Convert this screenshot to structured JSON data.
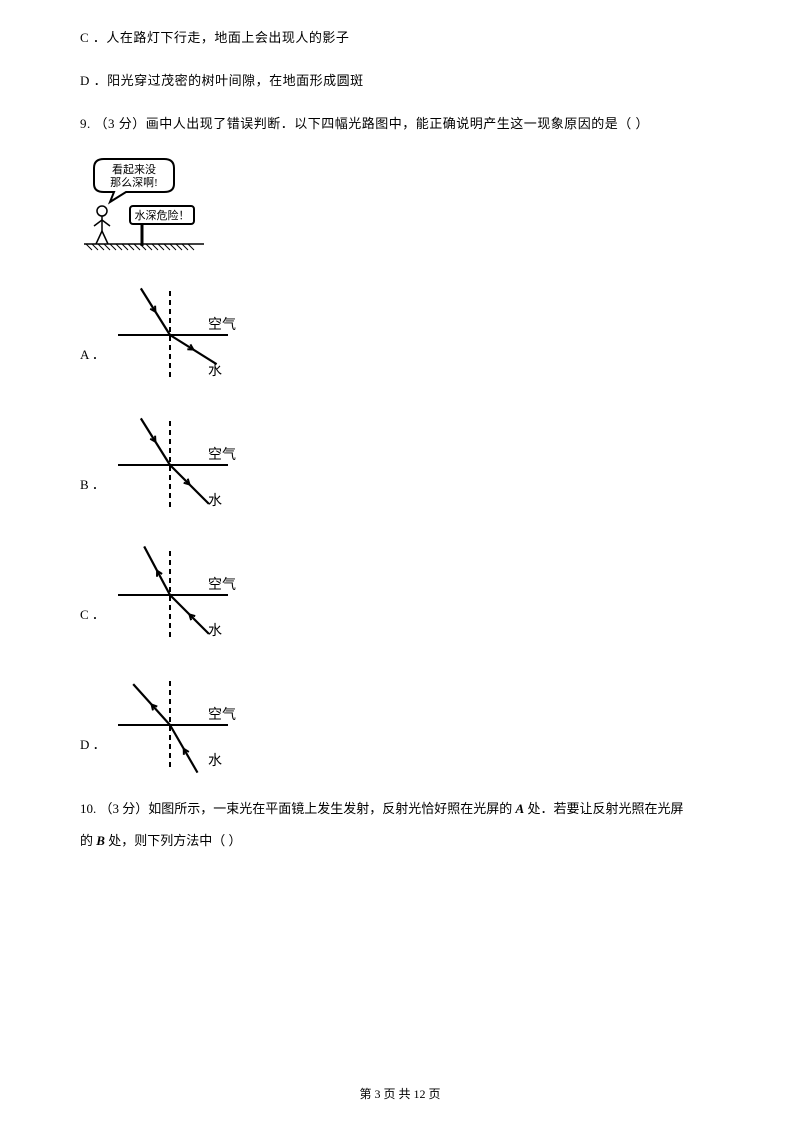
{
  "optC": "C ．人在路灯下行走，地面上会出现人的影子",
  "optD": "D ．阳光穿过茂密的树叶间隙，在地面形成圆斑",
  "q9": {
    "prefix": "9. （3 分）画中人出现了错误判断．以下四幅光路图中，能正确说明产生这一现象原因的是（      ）",
    "cartoon": {
      "bubble1": "看起来没",
      "bubble2": "那么深啊!",
      "sign": "水深危险！"
    },
    "labels": {
      "air": "空气",
      "water": "水"
    },
    "options": [
      {
        "label": "A ．",
        "incidentAngle": 32,
        "refractAngle": 58,
        "arrowDir": "down"
      },
      {
        "label": "B ．",
        "incidentAngle": 32,
        "refractAngle": 45,
        "arrowDir": "down"
      },
      {
        "label": "C ．",
        "incidentAngle": 28,
        "refractAngle": 45,
        "arrowDir": "up"
      },
      {
        "label": "D ．",
        "incidentAngle": 42,
        "refractAngle": 30,
        "arrowDir": "up"
      }
    ]
  },
  "q10": {
    "text1": "10. （3 分）如图所示，一束光在平面镜上发生发射，反射光恰好照在光屏的 ",
    "A": "A",
    "text2": " 处．若要让反射光照在光屏",
    "text3": "的 ",
    "B": "B",
    "text4": " 处，则下列方法中（      ）"
  },
  "footer": {
    "text": "第 3 页 共 12 页"
  },
  "colors": {
    "stroke": "#000000",
    "bg": "#ffffff"
  }
}
